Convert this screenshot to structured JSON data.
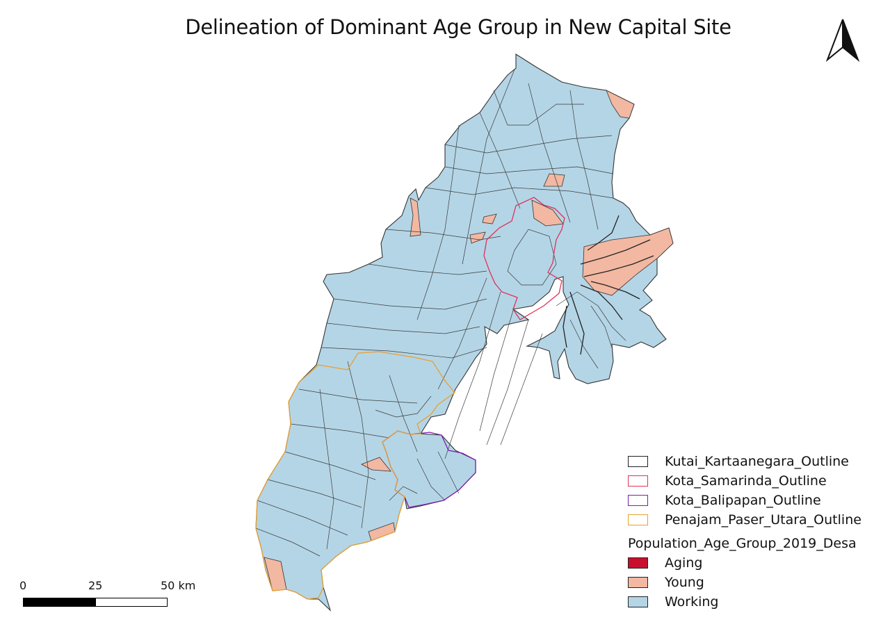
{
  "title": "Delineation of Dominant Age Group in New Capital Site",
  "north_arrow": {
    "icon": "north-arrow-icon"
  },
  "legend": {
    "outlines": [
      {
        "label": "Kutai_Kartaanegara_Outline",
        "color": "#333333"
      },
      {
        "label": "Kota_Samarinda_Outline",
        "color": "#e0305a"
      },
      {
        "label": "Kota_Balipapan_Outline",
        "color": "#7a20a8"
      },
      {
        "label": "Penajam_Paser_Utara_Outline",
        "color": "#e8a030"
      }
    ],
    "group_title": "Population_Age_Group_2019_Desa",
    "categories": [
      {
        "label": "Aging",
        "color": "#c8102e"
      },
      {
        "label": "Young",
        "color": "#f2b8a2"
      },
      {
        "label": "Working",
        "color": "#b4d5e6"
      }
    ]
  },
  "scale_bar": {
    "ticks": [
      "0",
      "25",
      "50 km"
    ]
  },
  "colors": {
    "working": "#b4d5e6",
    "young": "#f2b8a2",
    "boundary": "#333333"
  }
}
